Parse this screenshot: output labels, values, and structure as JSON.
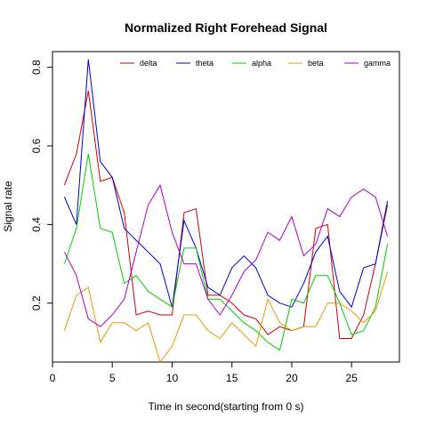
{
  "chart_data": {
    "type": "line",
    "title": "Normalized Right Forehead Signal",
    "xlabel": "Time in second(starting from 0 s)",
    "ylabel": "Signal rate",
    "xlim": [
      0,
      29
    ],
    "ylim": [
      0.05,
      0.84
    ],
    "xticks": [
      0,
      5,
      10,
      15,
      20,
      25
    ],
    "yticks": [
      0.2,
      0.4,
      0.6,
      0.8
    ],
    "legend": "top, horizontal, no border",
    "x": [
      1,
      2,
      3,
      4,
      5,
      6,
      7,
      8,
      9,
      10,
      11,
      12,
      13,
      14,
      15,
      16,
      17,
      18,
      19,
      20,
      21,
      22,
      23,
      24,
      25,
      26,
      27,
      28
    ],
    "series": [
      {
        "name": "delta",
        "color": "#cc0000",
        "values": [
          0.5,
          0.58,
          0.74,
          0.51,
          0.52,
          0.43,
          0.17,
          0.18,
          0.17,
          0.17,
          0.43,
          0.44,
          0.22,
          0.22,
          0.2,
          0.17,
          0.16,
          0.12,
          0.14,
          0.13,
          0.14,
          0.39,
          0.4,
          0.11,
          0.11,
          0.17,
          0.3,
          0.45
        ]
      },
      {
        "name": "theta",
        "color": "#0000cc",
        "values": [
          0.47,
          0.4,
          0.82,
          0.56,
          0.52,
          0.39,
          0.36,
          0.33,
          0.3,
          0.19,
          0.41,
          0.34,
          0.24,
          0.22,
          0.29,
          0.32,
          0.29,
          0.22,
          0.2,
          0.19,
          0.25,
          0.33,
          0.37,
          0.23,
          0.19,
          0.29,
          0.3,
          0.46
        ]
      },
      {
        "name": "alpha",
        "color": "#00cc00",
        "values": [
          0.3,
          0.39,
          0.58,
          0.39,
          0.38,
          0.25,
          0.27,
          0.23,
          0.21,
          0.19,
          0.34,
          0.34,
          0.21,
          0.21,
          0.18,
          0.15,
          0.13,
          0.1,
          0.08,
          0.21,
          0.2,
          0.27,
          0.27,
          0.2,
          0.12,
          0.13,
          0.19,
          0.35
        ]
      },
      {
        "name": "beta",
        "color": "#e69900",
        "values": [
          0.13,
          0.22,
          0.24,
          0.1,
          0.15,
          0.15,
          0.13,
          0.15,
          0.05,
          0.09,
          0.17,
          0.17,
          0.13,
          0.11,
          0.15,
          0.12,
          0.09,
          0.21,
          0.15,
          0.13,
          0.14,
          0.14,
          0.2,
          0.2,
          0.18,
          0.15,
          0.18,
          0.28
        ]
      },
      {
        "name": "gamma",
        "color": "#aa00cc",
        "values": [
          0.33,
          0.27,
          0.16,
          0.14,
          0.17,
          0.21,
          0.33,
          0.45,
          0.5,
          0.38,
          0.3,
          0.3,
          0.21,
          0.17,
          0.22,
          0.28,
          0.31,
          0.38,
          0.36,
          0.42,
          0.32,
          0.35,
          0.44,
          0.42,
          0.47,
          0.49,
          0.47,
          0.37
        ]
      }
    ]
  }
}
